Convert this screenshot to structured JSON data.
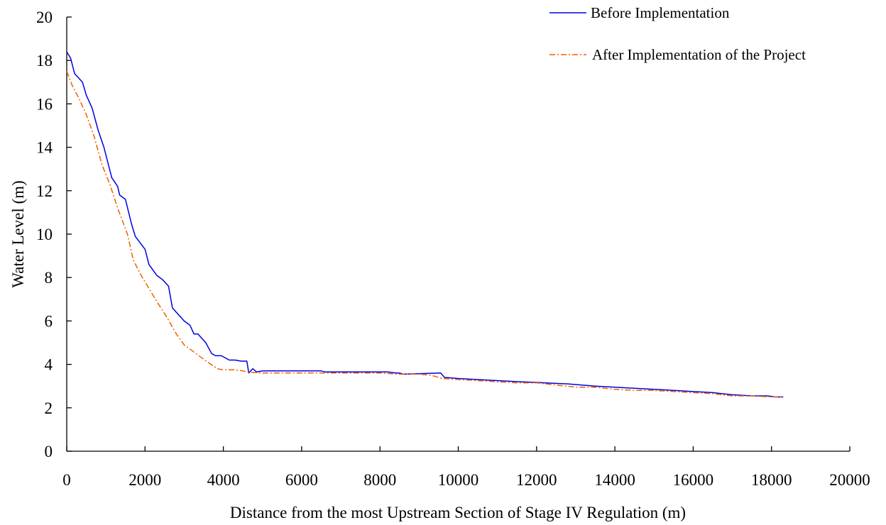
{
  "chart_data": {
    "type": "line",
    "title": "",
    "xlabel": "Distance from the most Upstream Section of Stage IV Regulation (m)",
    "ylabel": "Water Level (m)",
    "xlim": [
      0,
      20000
    ],
    "ylim": [
      0,
      20
    ],
    "xticks": [
      0,
      2000,
      4000,
      6000,
      8000,
      10000,
      12000,
      14000,
      16000,
      18000,
      20000
    ],
    "yticks": [
      0,
      2,
      4,
      6,
      8,
      10,
      12,
      14,
      16,
      18,
      20
    ],
    "grid": false,
    "legend_position": "top-right",
    "series": [
      {
        "name": "Before Implementation",
        "color": "#0000e0",
        "style": "solid",
        "points": [
          [
            0,
            18.4
          ],
          [
            100,
            18.1
          ],
          [
            200,
            17.4
          ],
          [
            400,
            17.0
          ],
          [
            500,
            16.4
          ],
          [
            650,
            15.8
          ],
          [
            800,
            14.8
          ],
          [
            950,
            14.0
          ],
          [
            1150,
            12.6
          ],
          [
            1300,
            12.2
          ],
          [
            1350,
            11.8
          ],
          [
            1500,
            11.6
          ],
          [
            1650,
            10.5
          ],
          [
            1750,
            9.9
          ],
          [
            2000,
            9.3
          ],
          [
            2100,
            8.6
          ],
          [
            2300,
            8.1
          ],
          [
            2450,
            7.9
          ],
          [
            2600,
            7.6
          ],
          [
            2700,
            6.6
          ],
          [
            2800,
            6.4
          ],
          [
            3000,
            6.0
          ],
          [
            3150,
            5.8
          ],
          [
            3250,
            5.4
          ],
          [
            3350,
            5.4
          ],
          [
            3550,
            5.0
          ],
          [
            3700,
            4.5
          ],
          [
            3800,
            4.4
          ],
          [
            3950,
            4.4
          ],
          [
            4150,
            4.2
          ],
          [
            4300,
            4.2
          ],
          [
            4450,
            4.15
          ],
          [
            4600,
            4.15
          ],
          [
            4650,
            3.6
          ],
          [
            4750,
            3.8
          ],
          [
            4850,
            3.65
          ],
          [
            5000,
            3.7
          ],
          [
            6500,
            3.7
          ],
          [
            6600,
            3.65
          ],
          [
            8200,
            3.65
          ],
          [
            8400,
            3.6
          ],
          [
            8500,
            3.6
          ],
          [
            8600,
            3.55
          ],
          [
            9550,
            3.6
          ],
          [
            9650,
            3.4
          ],
          [
            10000,
            3.35
          ],
          [
            10500,
            3.3
          ],
          [
            11000,
            3.25
          ],
          [
            11600,
            3.2
          ],
          [
            12200,
            3.15
          ],
          [
            12800,
            3.1
          ],
          [
            13500,
            3.0
          ],
          [
            14000,
            2.95
          ],
          [
            14500,
            2.9
          ],
          [
            15000,
            2.85
          ],
          [
            15500,
            2.8
          ],
          [
            16000,
            2.75
          ],
          [
            16500,
            2.7
          ],
          [
            17000,
            2.6
          ],
          [
            17500,
            2.55
          ],
          [
            17900,
            2.55
          ],
          [
            18100,
            2.5
          ],
          [
            18300,
            2.5
          ]
        ]
      },
      {
        "name": "After Implementation of the Project",
        "color": "#f06000",
        "style": "dashdot",
        "points": [
          [
            0,
            17.5
          ],
          [
            150,
            16.8
          ],
          [
            300,
            16.3
          ],
          [
            500,
            15.5
          ],
          [
            700,
            14.5
          ],
          [
            900,
            13.2
          ],
          [
            1100,
            12.3
          ],
          [
            1300,
            11.2
          ],
          [
            1550,
            10.0
          ],
          [
            1700,
            8.8
          ],
          [
            1900,
            8.1
          ],
          [
            2100,
            7.5
          ],
          [
            2300,
            6.9
          ],
          [
            2550,
            6.2
          ],
          [
            2800,
            5.4
          ],
          [
            3000,
            4.9
          ],
          [
            3300,
            4.5
          ],
          [
            3600,
            4.1
          ],
          [
            3850,
            3.8
          ],
          [
            4000,
            3.75
          ],
          [
            4300,
            3.75
          ],
          [
            4500,
            3.7
          ],
          [
            4600,
            3.65
          ],
          [
            5000,
            3.6
          ],
          [
            6000,
            3.6
          ],
          [
            7000,
            3.6
          ],
          [
            8000,
            3.6
          ],
          [
            8500,
            3.55
          ],
          [
            9000,
            3.55
          ],
          [
            9300,
            3.5
          ],
          [
            9600,
            3.35
          ],
          [
            10000,
            3.3
          ],
          [
            10500,
            3.25
          ],
          [
            11000,
            3.2
          ],
          [
            11500,
            3.15
          ],
          [
            12000,
            3.15
          ],
          [
            12500,
            3.05
          ],
          [
            13000,
            2.95
          ],
          [
            13500,
            2.95
          ],
          [
            14000,
            2.85
          ],
          [
            14500,
            2.8
          ],
          [
            15000,
            2.8
          ],
          [
            15500,
            2.75
          ],
          [
            16000,
            2.7
          ],
          [
            16500,
            2.65
          ],
          [
            17000,
            2.55
          ],
          [
            17500,
            2.55
          ],
          [
            18000,
            2.5
          ],
          [
            18300,
            2.5
          ]
        ]
      }
    ]
  }
}
